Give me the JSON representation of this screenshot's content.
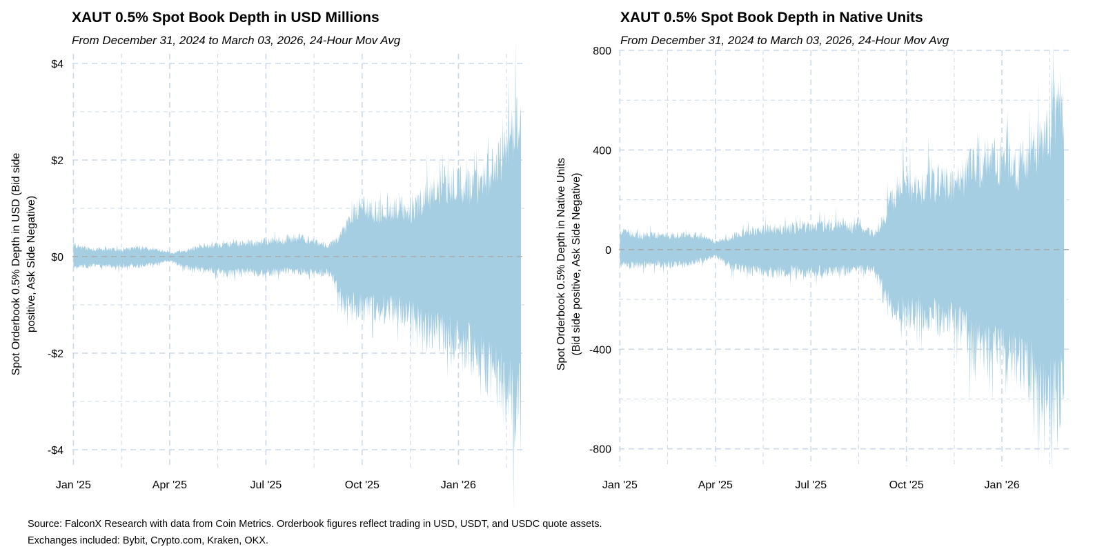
{
  "chart_data": [
    {
      "type": "area",
      "title": "XAUT 0.5% Spot Book Depth in USD Millions",
      "subtitle": "From December 31, 2024 to March 03, 2026, 24-Hour Mov Avg",
      "ylabel_lines": [
        "Spot Orderbook 0.5% Depth in USD (Bid side",
        "positive, Ask Side Negative)"
      ],
      "x_tick_labels": [
        "Jan '25",
        "Apr '25",
        "Jul '25",
        "Oct '25",
        "Jan '26"
      ],
      "x_tick_months": [
        0,
        3,
        6,
        9,
        12
      ],
      "x_range_months": [
        -0.03,
        14.1
      ],
      "y_tick_labels": [
        "$4",
        "$2",
        "$0",
        "-$2",
        "-$4"
      ],
      "y_tick_values": [
        4,
        2,
        0,
        -2,
        -4
      ],
      "ylim": [
        -4.4,
        4.2
      ],
      "fill_color": "#a6cee3",
      "zero_line_color": "#aaaaaa",
      "grid_color": "#cad8ea",
      "envelope": {
        "months": [
          0,
          0.5,
          1,
          1.5,
          2,
          2.5,
          3,
          3.5,
          4,
          4.5,
          5,
          5.5,
          6,
          6.5,
          7,
          7.5,
          8,
          8.2,
          8.4,
          8.6,
          8.8,
          9,
          9.5,
          10,
          10.5,
          11,
          11.5,
          12,
          12.5,
          13,
          13.25,
          13.5,
          13.75,
          13.95
        ],
        "upper": [
          0.3,
          0.2,
          0.2,
          0.18,
          0.22,
          0.2,
          0.1,
          0.15,
          0.3,
          0.3,
          0.35,
          0.35,
          0.4,
          0.45,
          0.5,
          0.4,
          0.3,
          0.45,
          0.7,
          0.95,
          1.2,
          1.3,
          1.2,
          1.3,
          1.2,
          1.6,
          1.9,
          2.0,
          1.8,
          2.3,
          2.5,
          2.9,
          3.6,
          3.3
        ],
        "lower": [
          -0.25,
          -0.25,
          -0.25,
          -0.25,
          -0.25,
          -0.2,
          -0.1,
          -0.3,
          -0.35,
          -0.4,
          -0.45,
          -0.4,
          -0.45,
          -0.4,
          -0.4,
          -0.4,
          -0.45,
          -0.8,
          -1.2,
          -1.3,
          -1.3,
          -1.4,
          -1.4,
          -1.45,
          -1.5,
          -1.9,
          -2.1,
          -2.2,
          -2.6,
          -3.0,
          -3.3,
          -3.7,
          -4.0,
          -3.7
        ],
        "peak_high": 3.75,
        "peak_low": -4.05
      }
    },
    {
      "type": "area",
      "title": "XAUT 0.5% Spot Book Depth in Native Units",
      "subtitle": "From December 31, 2024 to March 03, 2026, 24-Hour Mov Avg",
      "ylabel_lines": [
        "Spot Orderbook 0.5% Depth in Native Units",
        "(Bid side positive, Ask Side Negative)"
      ],
      "x_tick_labels": [
        "Jan '25",
        "Apr '25",
        "Jul '25",
        "Oct '25",
        "Jan '26"
      ],
      "x_tick_months": [
        0,
        3,
        6,
        9,
        12
      ],
      "x_range_months": [
        -0.03,
        14.1
      ],
      "y_tick_labels": [
        "800",
        "400",
        "0",
        "-400",
        "-800"
      ],
      "y_tick_values": [
        800,
        400,
        0,
        -400,
        -800
      ],
      "ylim": [
        -870,
        800
      ],
      "fill_color": "#a6cee3",
      "zero_line_color": "#aaaaaa",
      "grid_color": "#cad8ea",
      "envelope": {
        "months": [
          0,
          0.5,
          1,
          1.5,
          2,
          2.5,
          3,
          3.5,
          4,
          4.5,
          5,
          5.5,
          6,
          6.5,
          7,
          7.5,
          8,
          8.2,
          8.4,
          8.6,
          8.8,
          9,
          9.5,
          10,
          10.5,
          11,
          11.5,
          12,
          12.5,
          13,
          13.25,
          13.5,
          13.75,
          13.95
        ],
        "upper": [
          100,
          75,
          75,
          70,
          75,
          70,
          40,
          60,
          95,
          100,
          110,
          110,
          120,
          125,
          130,
          110,
          85,
          130,
          210,
          270,
          330,
          330,
          310,
          350,
          320,
          410,
          460,
          460,
          420,
          520,
          560,
          620,
          700,
          620
        ],
        "lower": [
          -80,
          -80,
          -75,
          -75,
          -75,
          -60,
          -30,
          -90,
          -100,
          -110,
          -120,
          -110,
          -115,
          -110,
          -110,
          -100,
          -110,
          -190,
          -280,
          -320,
          -320,
          -340,
          -330,
          -350,
          -360,
          -450,
          -520,
          -530,
          -580,
          -640,
          -700,
          -740,
          -770,
          -700
        ],
        "peak_high": 730,
        "peak_low": -795
      }
    }
  ],
  "source": {
    "line1": "Source: FalconX Research with data from Coin Metrics. Orderbook figures reflect trading in USD, USDT, and USDC quote assets.",
    "line2": "Exchanges included: Bybit, Crypto.com, Kraken, OKX."
  }
}
